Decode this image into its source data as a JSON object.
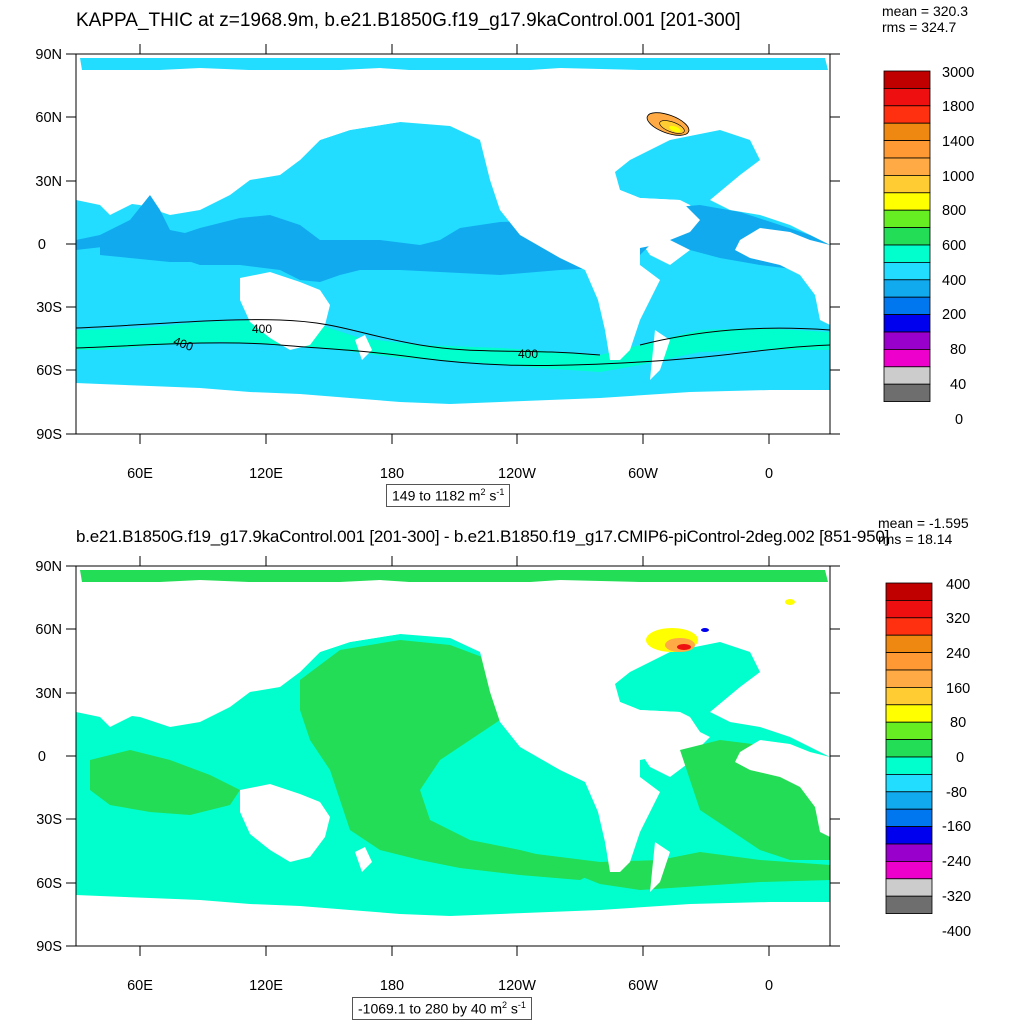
{
  "panels": [
    {
      "title": "KAPPA_THIC at z=1968.9m, b.e21.B1850G.f19_g17.9kaControl.001 [201-300]",
      "mean": "mean = 320.3",
      "rms": "rms = 324.7",
      "range": {
        "text": "149 to 1182 m",
        "sup1": "2",
        "mid": " s",
        "sup2": "-1"
      },
      "lat_labels": [
        "90N",
        "60N",
        "30N",
        "0",
        "30S",
        "60S",
        "90S"
      ],
      "lon_labels": [
        "60E",
        "120E",
        "180",
        "120W",
        "60W",
        "0"
      ],
      "colorbar_labels": [
        "3000",
        "1800",
        "1400",
        "1000",
        "800",
        "600",
        "400",
        "200",
        "80",
        "40",
        "0"
      ],
      "colorbar_colors": [
        "#c00000",
        "#ee1010",
        "#ff3010",
        "#ee8810",
        "#ff9933",
        "#ffaa44",
        "#ffcc33",
        "#ffff00",
        "#66ee22",
        "#22dd55",
        "#00ffcc",
        "#22ddff",
        "#11aaee",
        "#0077ee",
        "#0000ee",
        "#9900cc",
        "#ee00cc",
        "#cccccc",
        "#6e6e6e"
      ],
      "contour_labels": [
        "400",
        "400",
        "400"
      ],
      "ocean_color": "#22ddff",
      "tropical_color": "#11aaee",
      "southern_color": "#00ffcc",
      "hotspot_colors": [
        "#ffaa44",
        "#ffcc33",
        "#ffff00"
      ]
    },
    {
      "title": "b.e21.B1850G.f19_g17.9kaControl.001 [201-300] - b.e21.B1850.f19_g17.CMIP6-piControl-2deg.002 [851-950]",
      "mean": "mean = -1.595",
      "rms": "rms = 18.14",
      "range": {
        "text": "-1069.1 to 280 by 40 m",
        "sup1": "2",
        "mid": " s",
        "sup2": "-1"
      },
      "lat_labels": [
        "90N",
        "60N",
        "30N",
        "0",
        "30S",
        "60S",
        "90S"
      ],
      "lon_labels": [
        "60E",
        "120E",
        "180",
        "120W",
        "60W",
        "0"
      ],
      "colorbar_labels": [
        "400",
        "320",
        "240",
        "160",
        "80",
        "0",
        "-80",
        "-160",
        "-240",
        "-320",
        "-400"
      ],
      "colorbar_colors": [
        "#c00000",
        "#ee1010",
        "#ff3010",
        "#ee8810",
        "#ff9933",
        "#ffaa44",
        "#ffcc33",
        "#ffff00",
        "#66ee22",
        "#22dd55",
        "#00ffcc",
        "#22ddff",
        "#11aaee",
        "#0077ee",
        "#0000ee",
        "#9900cc",
        "#ee00cc",
        "#cccccc",
        "#6e6e6e"
      ],
      "ocean_color": "#00ffcc",
      "band_color": "#22dd55",
      "hotspot_colors": [
        "#ffff00",
        "#ffaa44",
        "#ee1010",
        "#0000ee"
      ]
    }
  ]
}
